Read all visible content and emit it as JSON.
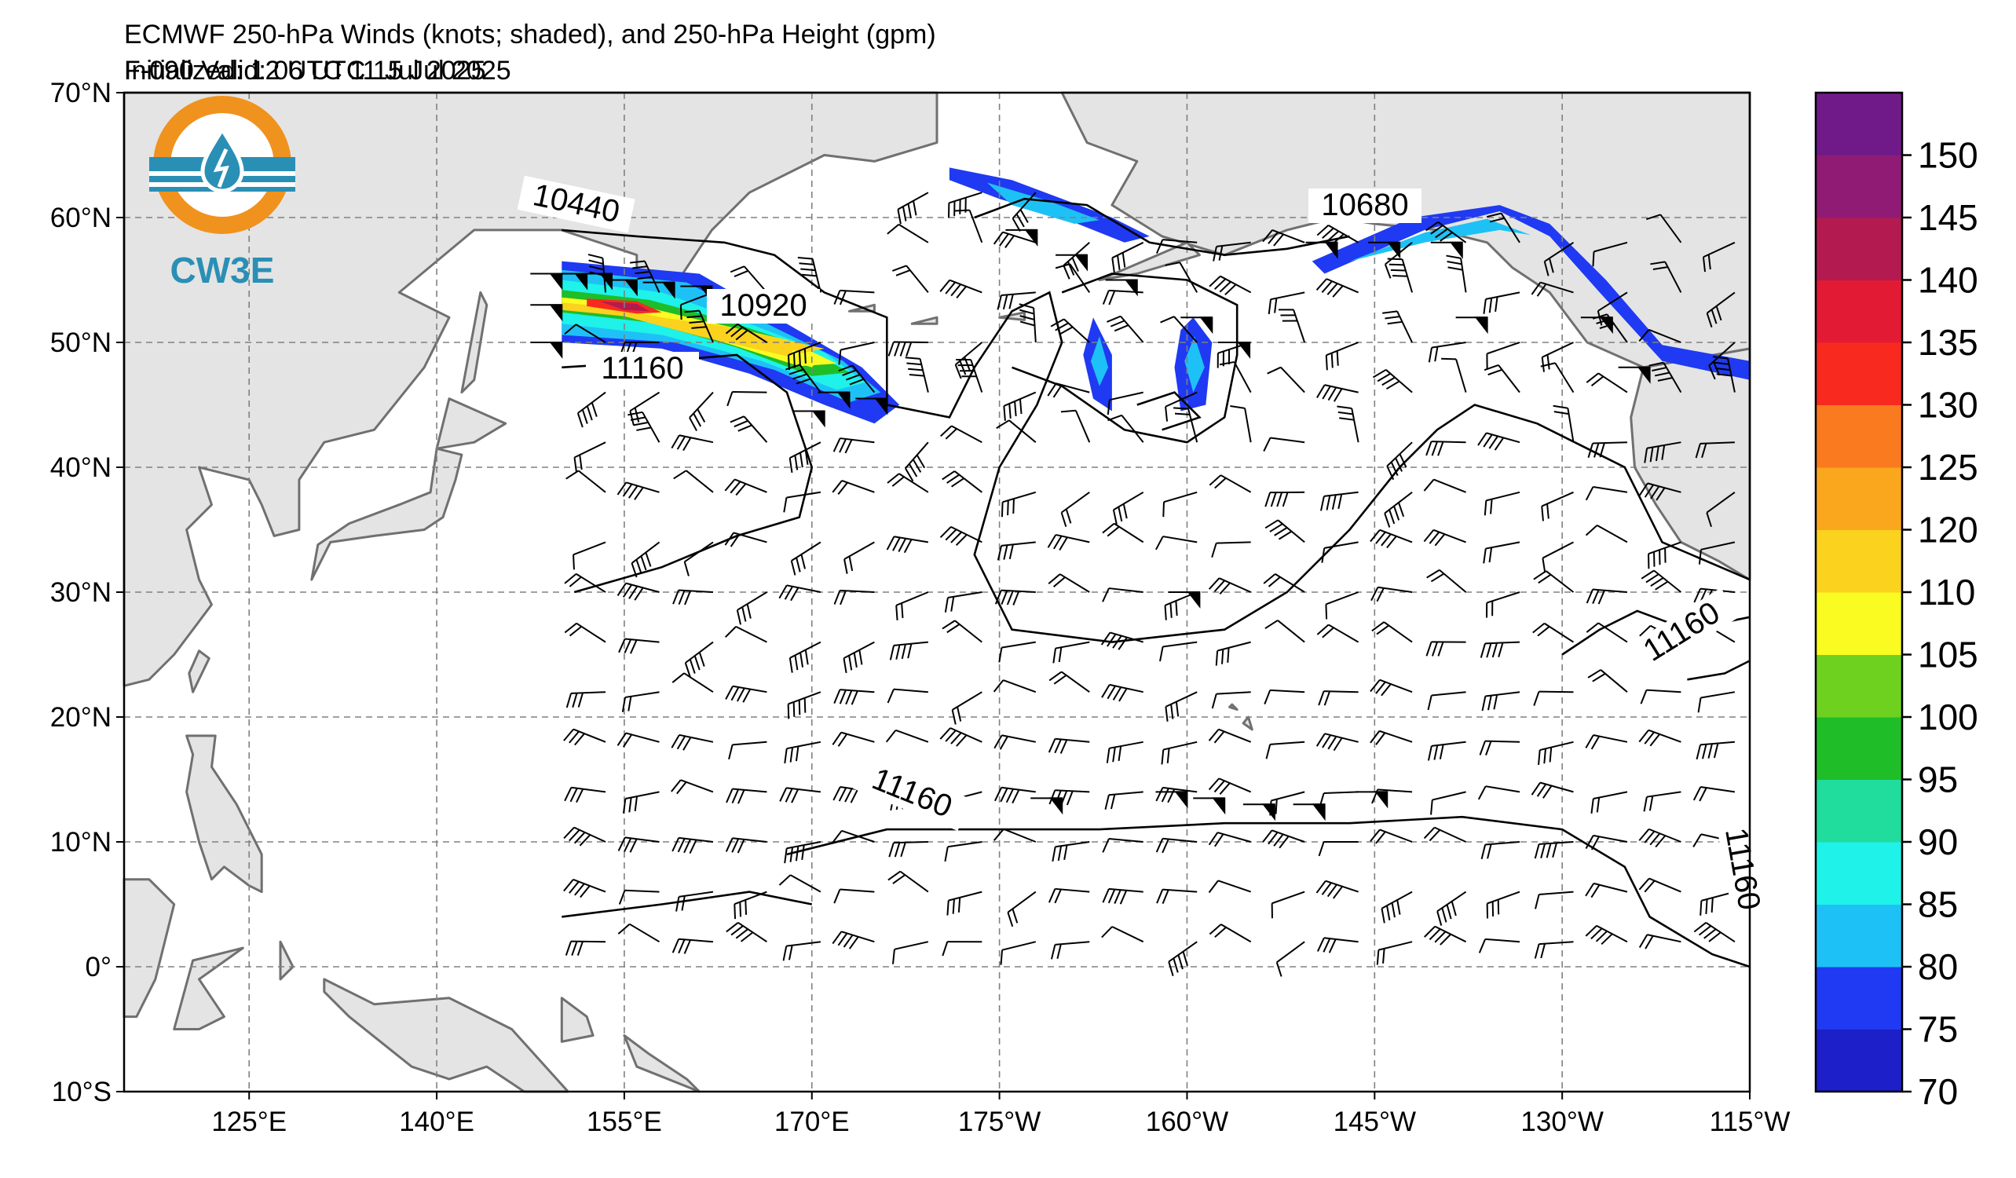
{
  "header": {
    "title": "ECMWF 250-hPa Winds (knots; shaded), and 250-hPa Height (gpm)",
    "initialized": "Initialized: 12 UTC 11 Jul 2025",
    "valid": "F-090  Valid: 06 UTC 15 Jul 2025"
  },
  "logo": {
    "text": "CW3E",
    "color": "#2a8fb5",
    "accent": "#f0921e"
  },
  "map": {
    "lat_labels": [
      "70°N",
      "60°N",
      "50°N",
      "40°N",
      "30°N",
      "20°N",
      "10°N",
      "0°",
      "10°S"
    ],
    "lon_labels": [
      "125°E",
      "140°E",
      "155°E",
      "170°E",
      "175°W",
      "160°W",
      "145°W",
      "130°W",
      "115°W"
    ],
    "land_color": "#e4e4e4",
    "coast_color": "#707070",
    "contour_labels": [
      "10440",
      "10920",
      "11160",
      "10680",
      "11160",
      "11160",
      "11160"
    ]
  },
  "colorbar": {
    "labels": [
      "70",
      "75",
      "80",
      "85",
      "90",
      "95",
      "100",
      "105",
      "110",
      "120",
      "125",
      "130",
      "135",
      "140",
      "145",
      "150"
    ],
    "colors": [
      "#1d1fc8",
      "#1f3af2",
      "#1ec1f5",
      "#1ff2e8",
      "#20dd9e",
      "#1fbd28",
      "#6fd11f",
      "#f9fb21",
      "#fbd21e",
      "#fba71e",
      "#f97a1f",
      "#f82a1f",
      "#e31a34",
      "#b31b50",
      "#901b74",
      "#701a8a"
    ]
  }
}
